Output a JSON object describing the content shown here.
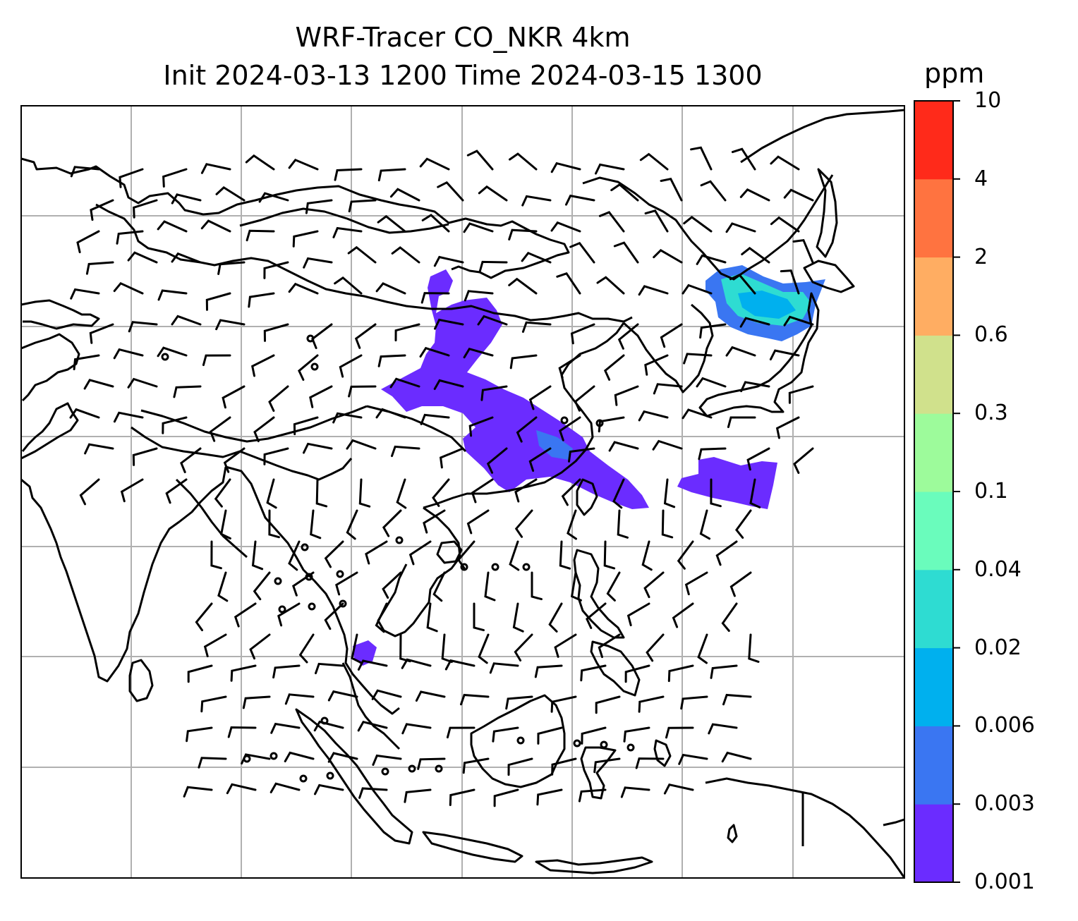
{
  "title": {
    "line1": "WRF-Tracer CO_NKR 4km",
    "line2": "Init 2024-03-13 1200 Time 2024-03-15 1300"
  },
  "colorbar": {
    "unit": "ppm",
    "levels": [
      "0.001",
      "0.003",
      "0.006",
      "0.02",
      "0.04",
      "0.1",
      "0.3",
      "0.6",
      "2",
      "4",
      "10"
    ],
    "colors": [
      "#6b2cff",
      "#3a76f2",
      "#00b0ee",
      "#2edcd2",
      "#6afcbc",
      "#9dfb9b",
      "#d0e18c",
      "#ffad62",
      "#ff7340",
      "#ff2a1a"
    ]
  },
  "map": {
    "plume_color": "#6b2cff",
    "plume_core_colors": [
      "#3a76f2",
      "#00b0ee",
      "#2edcd2"
    ]
  }
}
